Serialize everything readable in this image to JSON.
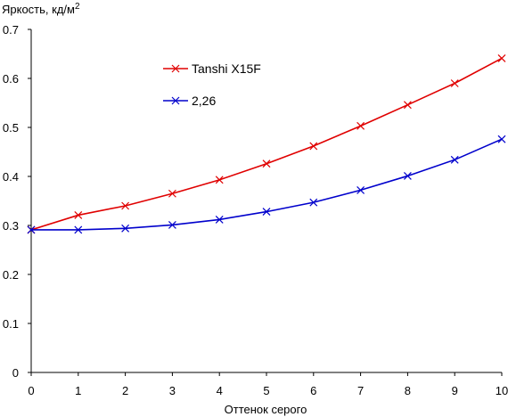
{
  "chart_data": {
    "type": "line",
    "title": "",
    "ylabel": "Яркость, кд/м",
    "ylabel_sup": "2",
    "xlabel": "Оттенок серого",
    "x": [
      0,
      1,
      2,
      3,
      4,
      5,
      6,
      7,
      8,
      9,
      10
    ],
    "xlim": [
      0,
      10
    ],
    "ylim": [
      0,
      0.7
    ],
    "x_ticks": [
      "0",
      "1",
      "2",
      "3",
      "4",
      "5",
      "6",
      "7",
      "8",
      "9",
      "10"
    ],
    "y_ticks": [
      "0",
      "0.1",
      "0.2",
      "0.3",
      "0.4",
      "0.5",
      "0.6",
      "0.7"
    ],
    "grid": false,
    "legend_position": "top-left",
    "series": [
      {
        "name": "Tanshi X15F",
        "color": "#e00000",
        "marker": "x",
        "values": [
          0.291,
          0.321,
          0.34,
          0.365,
          0.393,
          0.426,
          0.462,
          0.503,
          0.546,
          0.59,
          0.641
        ]
      },
      {
        "name": "2,26",
        "color": "#0000cc",
        "marker": "x",
        "values": [
          0.291,
          0.291,
          0.294,
          0.301,
          0.312,
          0.328,
          0.347,
          0.372,
          0.401,
          0.434,
          0.476
        ]
      }
    ]
  }
}
